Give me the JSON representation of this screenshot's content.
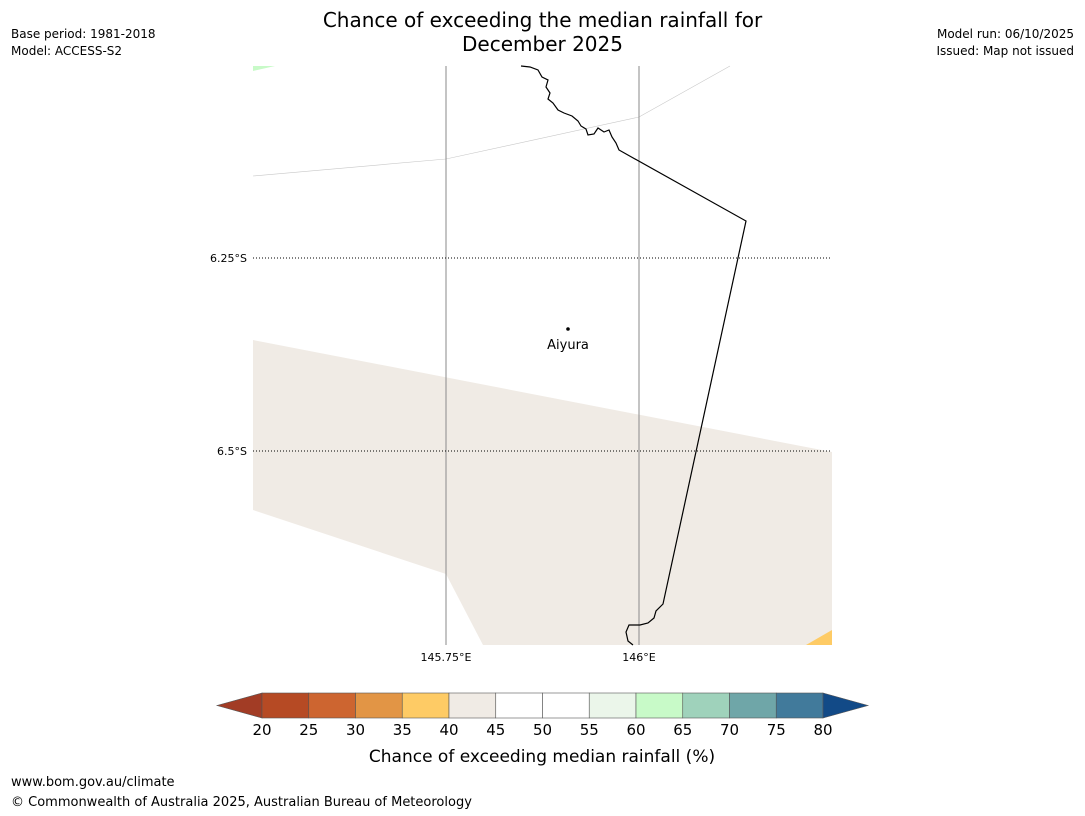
{
  "title_line1": "Chance of exceeding the median rainfall for",
  "title_line2": "December 2025",
  "base_period": "Base period: 1981-2018",
  "model": "Model: ACCESS-S2",
  "model_run": "Model run: 06/10/2025",
  "issued": "Issued: Map not issued",
  "map": {
    "lat_labels": [
      "6.25°S",
      "6.5°S"
    ],
    "lon_labels": [
      "145.75°E",
      "146°E"
    ],
    "place_label": "Aiyura"
  },
  "colorbar": {
    "ticks": [
      "20",
      "25",
      "30",
      "35",
      "40",
      "45",
      "50",
      "55",
      "60",
      "65",
      "70",
      "75",
      "80"
    ],
    "label": "Chance of exceeding median rainfall (%)",
    "colors": [
      "#a23c25",
      "#b64a24",
      "#cd6530",
      "#e29545",
      "#fecb65",
      "#f0ebe5",
      "#ffffff",
      "#ffffff",
      "#ebf6ea",
      "#c8fac8",
      "#9fd2bb",
      "#6fa6a8",
      "#417a9b",
      "#124a87"
    ]
  },
  "footer": {
    "url": "www.bom.gov.au/climate",
    "copyright": "© Commonwealth of Australia 2025, Australian Bureau of Meteorology"
  }
}
